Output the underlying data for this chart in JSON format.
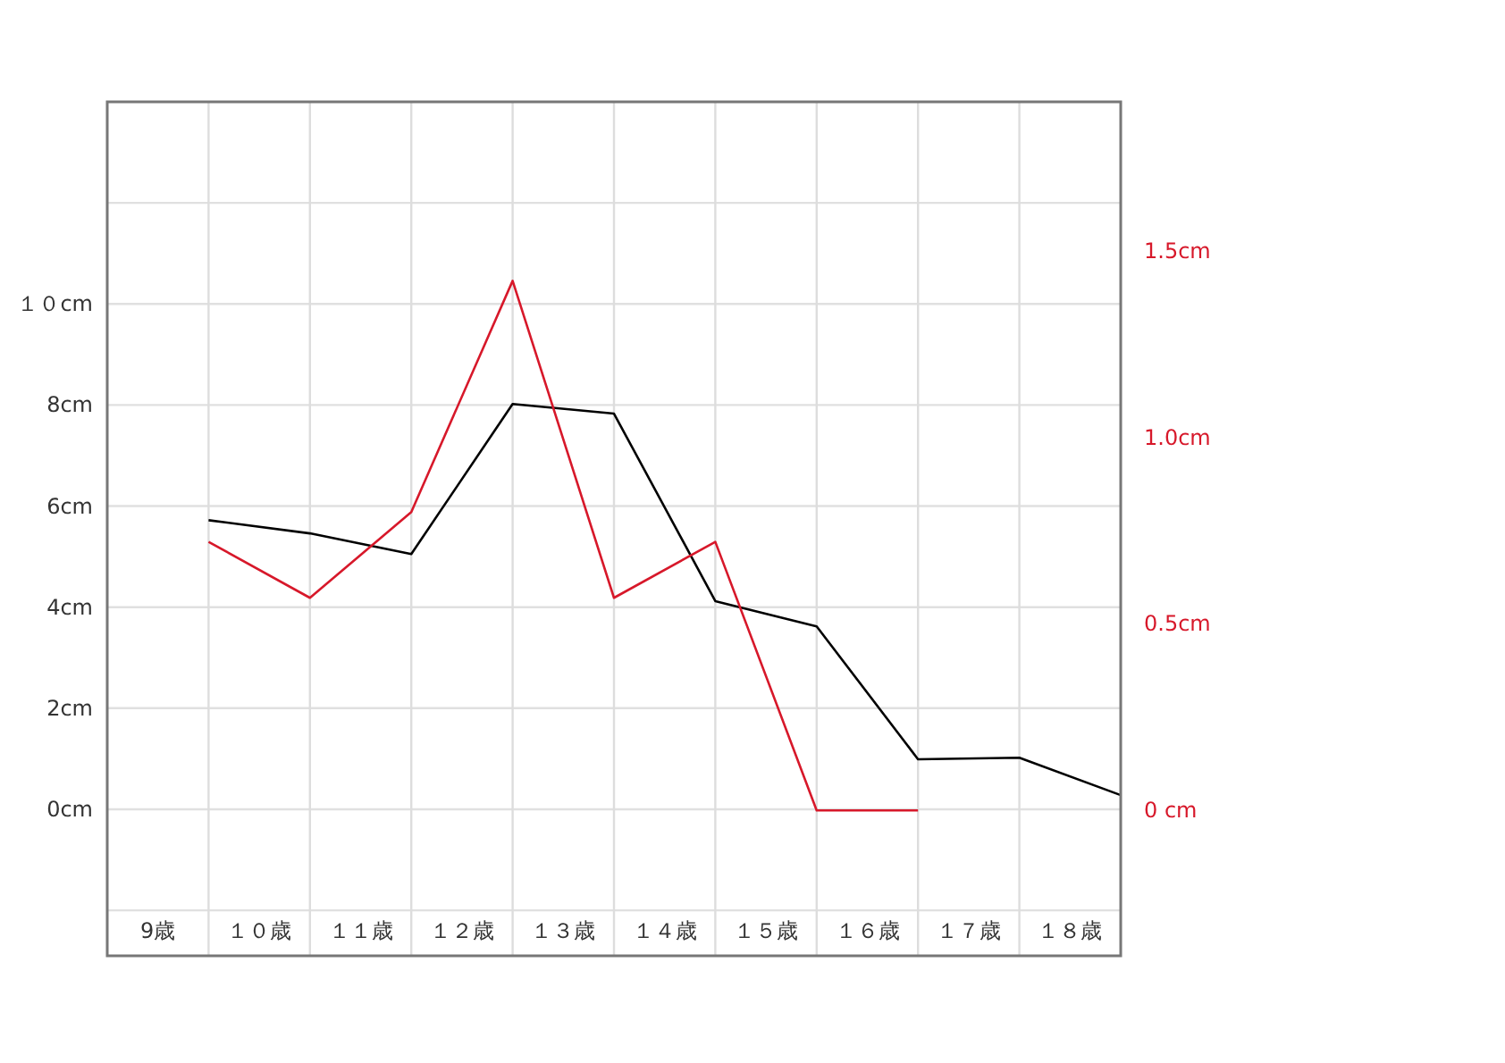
{
  "chart_data": {
    "type": "line",
    "xlim": [
      8.5,
      18.5
    ],
    "xticks": [
      {
        "value": 9,
        "label": "9歳"
      },
      {
        "value": 10,
        "label": "１０歳"
      },
      {
        "value": 11,
        "label": "１１歳"
      },
      {
        "value": 12,
        "label": "１２歳"
      },
      {
        "value": 13,
        "label": "１３歳"
      },
      {
        "value": 14,
        "label": "１４歳"
      },
      {
        "value": 15,
        "label": "１５歳"
      },
      {
        "value": 16,
        "label": "１６歳"
      },
      {
        "value": 17,
        "label": "１７歳"
      },
      {
        "value": 18,
        "label": "１８歳"
      },
      {
        "value": 9.5,
        "label": null
      },
      {
        "value": 10.5,
        "label": null
      },
      {
        "value": 11.5,
        "label": null
      },
      {
        "value": 12.5,
        "label": null
      },
      {
        "value": 13.5,
        "label": null
      },
      {
        "value": 14.5,
        "label": null
      },
      {
        "value": 15.5,
        "label": null
      },
      {
        "value": 16.5,
        "label": null
      },
      {
        "value": 17.5,
        "label": null
      }
    ],
    "ylim": [
      -2.9,
      14
    ],
    "yticks": [
      {
        "value": -2,
        "label": null
      },
      {
        "value": 0,
        "label": "0cm"
      },
      {
        "value": 2,
        "label": "2cm"
      },
      {
        "value": 4,
        "label": "4cm"
      },
      {
        "value": 6,
        "label": "6cm"
      },
      {
        "value": 8,
        "label": "8cm"
      },
      {
        "value": 10,
        "label": "１０cm"
      },
      {
        "value": 12,
        "label": null
      }
    ],
    "y2lim": [
      -0.39,
      1.9
    ],
    "y2ticks": [
      {
        "value": 0,
        "label": "0 cm"
      },
      {
        "value": 0.5,
        "label": "0.5cm"
      },
      {
        "value": 1.0,
        "label": "1.0cm"
      },
      {
        "value": 1.5,
        "label": "1.5cm"
      }
    ],
    "grid": true,
    "series": [
      {
        "color": "#000000",
        "x": [
          9.5,
          10.5,
          11.5,
          12.5,
          13.5,
          14.5,
          15.5,
          16.5,
          17.5,
          18.5
        ],
        "values": [
          5.72,
          5.46,
          5.05,
          8.02,
          7.83,
          4.12,
          3.62,
          0.99,
          1.02,
          0.28
        ]
      },
      {
        "color": "#d7182a",
        "axis": "y2",
        "x": [
          9.5,
          10.5,
          11.5,
          12.5,
          13.5,
          14.5,
          15.5,
          16.5
        ],
        "values": [
          0.72,
          0.57,
          0.8,
          1.42,
          0.57,
          0.72,
          0,
          0
        ]
      }
    ]
  }
}
